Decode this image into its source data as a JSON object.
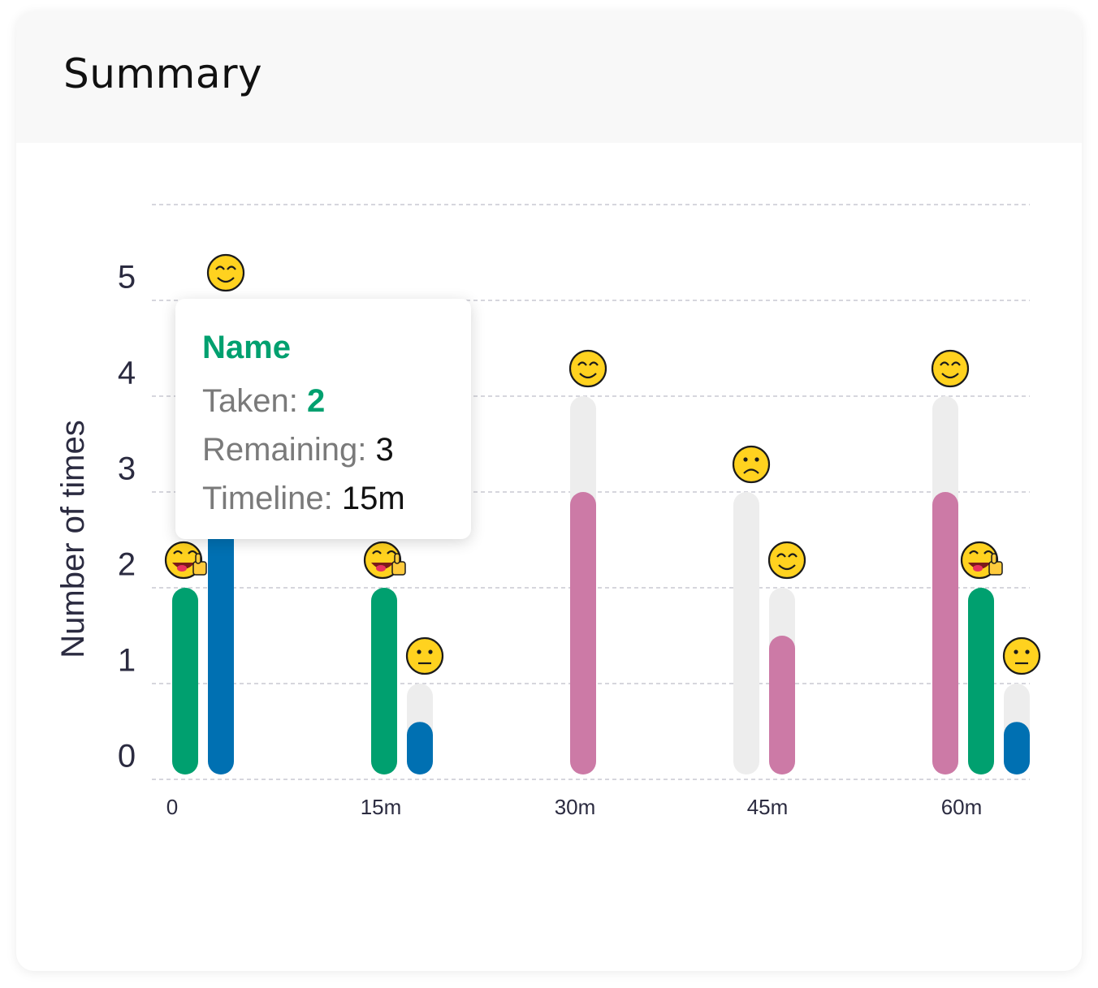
{
  "card": {
    "title": "Summary"
  },
  "tooltip": {
    "name": "Name",
    "taken_label": "Taken:",
    "taken_value": "2",
    "remaining_label": "Remaining:",
    "remaining_value": "3",
    "timeline_label": "Timeline:",
    "timeline_value": "15m"
  },
  "colors": {
    "green": "#00a06f",
    "blue": "#0070b2",
    "pink": "#cc7aa6",
    "track": "#ededed",
    "axis_text": "#2b2b40",
    "grid": "#c9c9d2"
  },
  "chart_data": {
    "type": "bar",
    "ylabel": "Number of times",
    "xlabel": "",
    "ylim": [
      0,
      5
    ],
    "y_ticks": [
      "0",
      "1",
      "2",
      "3",
      "4",
      "5"
    ],
    "categories": [
      "0",
      "15m",
      "30m",
      "45m",
      "60m"
    ],
    "grid": true,
    "groups": [
      {
        "category": "0",
        "bars": [
          {
            "color": "green",
            "value": 2,
            "total": 2,
            "emoji": "thumbs-up-face"
          },
          {
            "color": "blue",
            "value": 5,
            "total": 5,
            "emoji": "smile"
          }
        ]
      },
      {
        "category": "15m",
        "bars": [
          {
            "color": "green",
            "value": 2,
            "total": 2,
            "emoji": "thumbs-up-face"
          },
          {
            "color": "blue",
            "value": 0.6,
            "total": 1,
            "emoji": "neutral"
          }
        ]
      },
      {
        "category": "30m",
        "bars": [
          {
            "color": "pink",
            "value": 3,
            "total": 4,
            "emoji": "smile"
          }
        ]
      },
      {
        "category": "45m",
        "bars": [
          {
            "color": "track",
            "value": 0,
            "total": 3,
            "emoji": "sad"
          },
          {
            "color": "pink",
            "value": 1.5,
            "total": 2,
            "emoji": "smile"
          }
        ]
      },
      {
        "category": "60m",
        "bars": [
          {
            "color": "pink",
            "value": 3,
            "total": 4,
            "emoji": "smile"
          },
          {
            "color": "green",
            "value": 2,
            "total": 2,
            "emoji": "thumbs-up-face"
          },
          {
            "color": "blue",
            "value": 0.6,
            "total": 1,
            "emoji": "neutral"
          }
        ]
      }
    ]
  }
}
